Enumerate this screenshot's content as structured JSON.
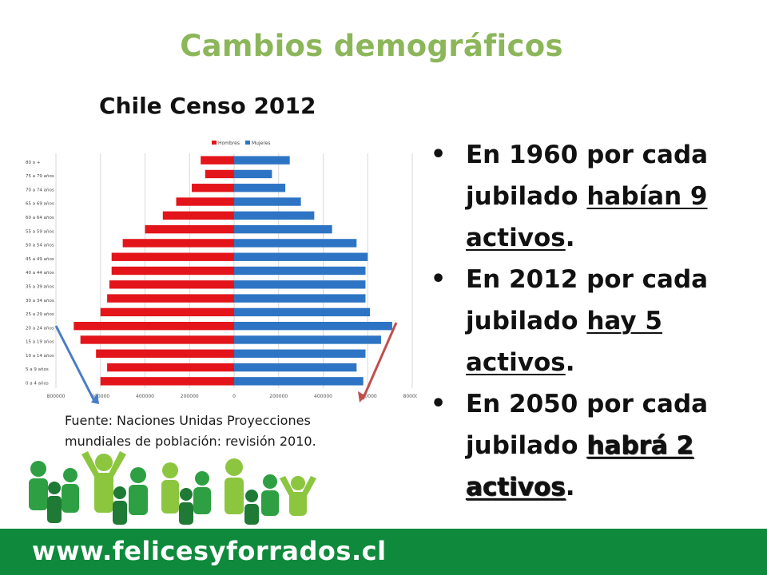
{
  "title": "Cambios demográficos",
  "subtitle": "Chile Censo 2012",
  "source": {
    "line1": "Fuente: Naciones Unidas Proyecciones",
    "line2": "mundiales de población: revisión 2010."
  },
  "bullets": [
    {
      "pre": "En 1960 por cada jubilado ",
      "emph": "habían 9 activos",
      "post": "."
    },
    {
      "pre": "En 2012 por cada jubilado ",
      "emph": "hay 5 activos",
      "post": "."
    },
    {
      "pre": "En 2050 por cada jubilado ",
      "emph": "habrá 2 activos",
      "post": "."
    }
  ],
  "footer": {
    "url": "www.felicesyforrados.cl"
  },
  "colors": {
    "title": "#8cb65a",
    "hombres": "#e3151a",
    "mujeres": "#2e74c4",
    "footer": "#0f8a3c",
    "arrow_left": "#4a7cc7",
    "arrow_right": "#c0504d"
  },
  "chart_data": {
    "type": "bar",
    "orientation": "horizontal-population-pyramid",
    "categories": [
      "0 a 4 años",
      "5 a 9 años",
      "10 a 14 años",
      "15 a 19 años",
      "20 a 24 años",
      "25 a 29 años",
      "30 a 34 años",
      "35 a 39 años",
      "40 a 44 años",
      "45 a 49 años",
      "50 a 54 años",
      "55 a 59 años",
      "60 a 64 años",
      "65 a 69 años",
      "70 a 74 años",
      "75 a 79 años",
      "80 o +"
    ],
    "series": [
      {
        "name": "Hombres",
        "color": "#e3151a",
        "values": [
          600000,
          570000,
          620000,
          690000,
          720000,
          600000,
          570000,
          560000,
          550000,
          550000,
          500000,
          400000,
          320000,
          260000,
          190000,
          130000,
          150000
        ]
      },
      {
        "name": "Mujeres",
        "color": "#2e74c4",
        "values": [
          580000,
          550000,
          590000,
          660000,
          710000,
          610000,
          590000,
          590000,
          590000,
          600000,
          550000,
          440000,
          360000,
          300000,
          230000,
          170000,
          250000
        ]
      }
    ],
    "xlim": [
      -800000,
      800000
    ],
    "ticks": [
      "800000",
      "600000",
      "400000",
      "200000",
      "0",
      "200000",
      "400000",
      "600000",
      "800000"
    ],
    "legend": "top-center",
    "grid": true
  }
}
